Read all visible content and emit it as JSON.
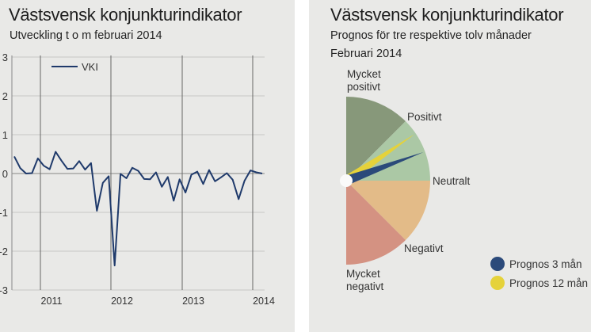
{
  "left": {
    "title": "Västsvensk konjunkturindikator",
    "subtitle": "Utveckling t o m februari 2014"
  },
  "right": {
    "title": "Västsvensk konjunkturindikator",
    "subtitle1": "Prognos för tre respektive tolv månader",
    "subtitle2": "Februari 2014"
  },
  "chart_data": [
    {
      "type": "line",
      "title": "Västsvensk konjunkturindikator",
      "subtitle": "Utveckling t o m februari 2014",
      "ylim": [
        -3,
        3
      ],
      "yticks": [
        "3",
        "2",
        "1",
        "0",
        "-1",
        "-2",
        "-3"
      ],
      "xticks": [
        "2011",
        "2012",
        "2013",
        "2014"
      ],
      "x_range": "Aug 2010 – Feb 2014 (monthly)",
      "legend": "top-left",
      "grid": true,
      "series": [
        {
          "name": "VKI",
          "color": "#1f3a6b",
          "values": [
            0.44,
            0.14,
            0.0,
            0.01,
            0.39,
            0.2,
            0.11,
            0.56,
            0.33,
            0.12,
            0.13,
            0.32,
            0.1,
            0.27,
            -0.96,
            -0.24,
            -0.07,
            -2.37,
            -0.01,
            -0.12,
            0.15,
            0.07,
            -0.14,
            -0.15,
            0.03,
            -0.34,
            -0.09,
            -0.7,
            -0.15,
            -0.49,
            -0.03,
            0.05,
            -0.27,
            0.09,
            -0.2,
            -0.1,
            0.01,
            -0.16,
            -0.66,
            -0.19,
            0.08,
            0.03,
            0.0
          ]
        }
      ]
    },
    {
      "type": "gauge",
      "title": "Västsvensk konjunkturindikator",
      "scale_labels": [
        "Mycket positivt",
        "Positivt",
        "Neutralt",
        "Negativt",
        "Mycket negativt"
      ],
      "bands": [
        {
          "name": "Mycket positivt",
          "from": 0,
          "to": 1,
          "color": "#87987a"
        },
        {
          "name": "Positivt",
          "from": 1,
          "to": 2,
          "color": "#abc8a5"
        },
        {
          "name": "Negativt",
          "from": 2,
          "to": 3,
          "color": "#e3bb88"
        },
        {
          "name": "Mycket negativt",
          "from": 3,
          "to": 4,
          "color": "#d49282"
        }
      ],
      "needles": [
        {
          "name": "Prognos 3 mån",
          "value": 1.55,
          "color": "#2b4a7a"
        },
        {
          "name": "Prognos 12 mån",
          "value": 1.24,
          "color": "#e5d23a"
        }
      ]
    }
  ]
}
